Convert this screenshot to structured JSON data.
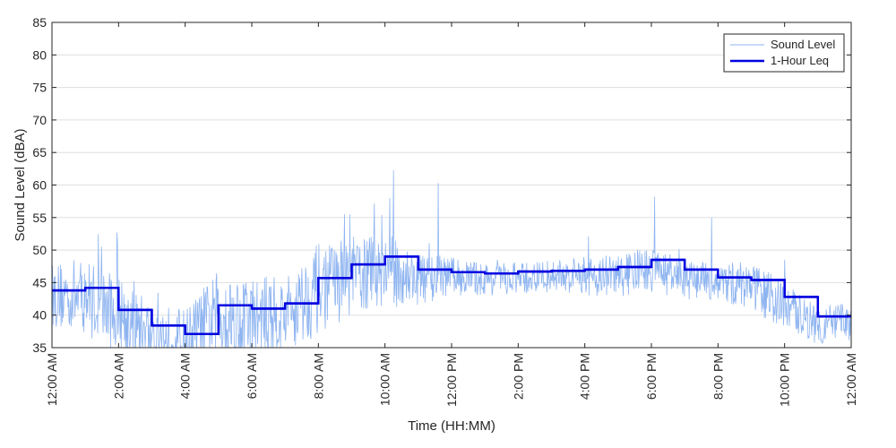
{
  "chart_data": {
    "type": "line",
    "title": "",
    "xlabel": "Time (HH:MM)",
    "ylabel": "Sound Level (dBA)",
    "xlim": [
      0,
      24
    ],
    "ylim": [
      35,
      85
    ],
    "grid": true,
    "legend_position": "top-right",
    "x_tick_labels": [
      "12:00 AM",
      "2:00 AM",
      "4:00 AM",
      "6:00 AM",
      "8:00 AM",
      "10:00 AM",
      "12:00 PM",
      "2:00 PM",
      "4:00 PM",
      "6:00 PM",
      "8:00 PM",
      "10:00 PM",
      "12:00 AM"
    ],
    "y_ticks": [
      35,
      40,
      45,
      50,
      55,
      60,
      65,
      70,
      75,
      80,
      85
    ],
    "colors": {
      "sound_level": "#8eb4f0",
      "leq": "#0000e0"
    },
    "series": [
      {
        "name": "Sound Level",
        "style": "thin-noisy-line",
        "hourly_mean": [
          43,
          43,
          40,
          37,
          36,
          40,
          39,
          40,
          44,
          46,
          47,
          45.5,
          46,
          45.5,
          45.5,
          46,
          46,
          46,
          47,
          45.5,
          45,
          44.5,
          41.5,
          38.5,
          39
        ],
        "hourly_spread": [
          5,
          6,
          6,
          5,
          5,
          7,
          7,
          6,
          7,
          6,
          6,
          4,
          3,
          2.5,
          2.5,
          2.5,
          3,
          3.5,
          3.5,
          3,
          3,
          4,
          3.5,
          3,
          3
        ],
        "spikes": [
          {
            "x": 10.15,
            "y": 58
          },
          {
            "x": 10.25,
            "y": 62.3
          },
          {
            "x": 11.6,
            "y": 60.3
          },
          {
            "x": 8.95,
            "y": 55.5
          },
          {
            "x": 18.1,
            "y": 58.2
          },
          {
            "x": 1.95,
            "y": 52.7
          },
          {
            "x": 9.9,
            "y": 55.4
          },
          {
            "x": 19.8,
            "y": 55
          }
        ]
      },
      {
        "name": "1-Hour Leq",
        "style": "thick-step-line",
        "x": [
          0,
          1,
          2,
          3,
          4,
          5,
          6,
          7,
          8,
          9,
          10,
          11,
          12,
          13,
          14,
          15,
          16,
          17,
          18,
          19,
          20,
          21,
          22,
          23
        ],
        "values": [
          43.8,
          44.2,
          40.8,
          38.4,
          37.1,
          41.5,
          41.0,
          41.8,
          45.7,
          47.8,
          49.0,
          47.0,
          46.6,
          46.4,
          46.7,
          46.8,
          47.0,
          47.4,
          48.5,
          47.0,
          45.8,
          45.4,
          42.8,
          39.8
        ]
      }
    ]
  }
}
